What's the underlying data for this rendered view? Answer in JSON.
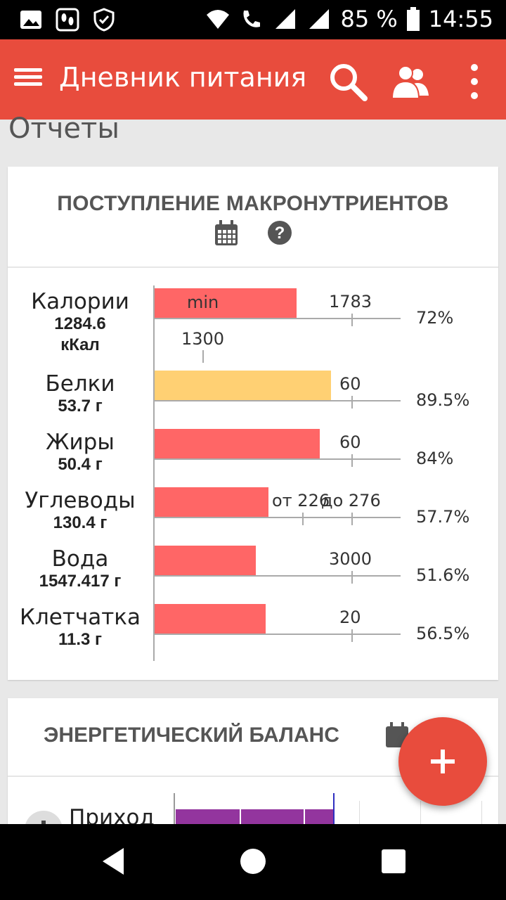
{
  "status_bar": {
    "left_icons": [
      "image-icon",
      "footprints-icon",
      "shield-check-icon"
    ],
    "battery_percent": "85 %",
    "time": "14:55"
  },
  "app_bar": {
    "title": "Дневник питания",
    "actions": [
      "search-icon",
      "people-icon",
      "more-vert-icon"
    ]
  },
  "page": {
    "title": "Отчеты"
  },
  "macro_card": {
    "title": "ПОСТУПЛЕНИЕ МАКРОНУТРИЕНТОВ",
    "tools": [
      "calendar-icon",
      "help-icon"
    ],
    "rows": [
      {
        "name": "Калории",
        "value": "1284.6",
        "unit": "кКал",
        "target": "1783",
        "min_label": "min",
        "min_value": "1300",
        "percent": "72%",
        "fill": 0.72
      },
      {
        "name": "Белки",
        "value": "53.7 г",
        "target": "60",
        "percent": "89.5%",
        "fill": 0.895
      },
      {
        "name": "Жиры",
        "value": "50.4 г",
        "target": "60",
        "percent": "84%",
        "fill": 0.84
      },
      {
        "name": "Углеводы",
        "value": "130.4 г",
        "target_from": "от 226",
        "target_to": "до 276",
        "percent": "57.7%",
        "fill": 0.577
      },
      {
        "name": "Вода",
        "value": "1547.417 г",
        "target": "3000",
        "percent": "51.6%",
        "fill": 0.516
      },
      {
        "name": "Клетчатка",
        "value": "11.3 г",
        "target": "20",
        "percent": "56.5%",
        "fill": 0.565
      }
    ]
  },
  "energy_card": {
    "title": "ЭНЕРГЕТИЧЕСКИЙ БАЛАНС",
    "first_row_label": "Приход"
  },
  "fab": {
    "icon": "plus-icon"
  },
  "colors": {
    "primary": "#e84c3d",
    "bar_red": "#ff6666",
    "bar_yellow": "#ffd073",
    "energy_purple": "#93359e"
  }
}
